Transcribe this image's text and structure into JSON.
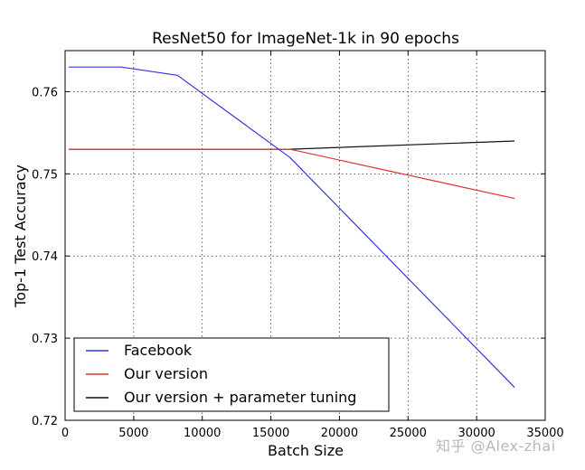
{
  "chart_data": {
    "type": "line",
    "title": "ResNet50 for ImageNet-1k in 90 epochs",
    "xlabel": "Batch Size",
    "ylabel": "Top-1 Test Accuracy",
    "xlim": [
      0,
      35000
    ],
    "ylim": [
      0.72,
      0.765
    ],
    "xticks": [
      0,
      5000,
      10000,
      15000,
      20000,
      25000,
      30000,
      35000
    ],
    "xtick_labels": [
      "0",
      "5000",
      "10000",
      "15000",
      "20000",
      "25000",
      "30000",
      "35000"
    ],
    "yticks": [
      0.72,
      0.73,
      0.74,
      0.75,
      0.76
    ],
    "ytick_labels": [
      "0.72",
      "0.73",
      "0.74",
      "0.75",
      "0.76"
    ],
    "grid": true,
    "legend_position": "lower-left",
    "series": [
      {
        "name": "Facebook",
        "color": "#3333dd",
        "x": [
          256,
          4096,
          8192,
          16384,
          32768
        ],
        "y": [
          0.763,
          0.763,
          0.762,
          0.752,
          0.724
        ]
      },
      {
        "name": "Our version",
        "color": "#e03030",
        "x": [
          256,
          16384,
          32768
        ],
        "y": [
          0.753,
          0.753,
          0.747
        ]
      },
      {
        "name": "Our version + parameter tuning",
        "color": "#111111",
        "x": [
          256,
          16384,
          32768
        ],
        "y": [
          0.753,
          0.753,
          0.754
        ]
      }
    ]
  },
  "watermark": "知乎 @Alex-zhai"
}
